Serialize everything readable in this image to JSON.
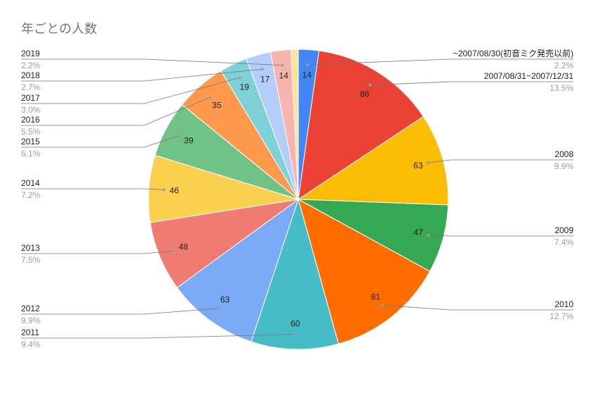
{
  "chart_data": {
    "type": "pie",
    "title": "年ごとの人数",
    "categories": [
      "~2007/08/30(初音ミク発売以前)",
      "2007/08/31~2007/12/31",
      "2008",
      "2009",
      "2010",
      "2011",
      "2012",
      "2013",
      "2014",
      "2015",
      "2016",
      "2017",
      "2018",
      "2019",
      null
    ],
    "values": [
      14,
      86,
      63,
      47,
      81,
      60,
      63,
      48,
      46,
      39,
      35,
      19,
      17,
      14,
      5
    ],
    "percent_labels": [
      "2.2%",
      "13.5%",
      "9.9%",
      "7.4%",
      "12.7%",
      "9.4%",
      "9.9%",
      "7.5%",
      "7.2%",
      "6.1%",
      "5.5%",
      "3.0%",
      "2.7%",
      "2.2%",
      null
    ],
    "colors": [
      "#4285f4",
      "#ea4335",
      "#fbbc04",
      "#34a853",
      "#ff6d01",
      "#46bdc6",
      "#7baaf7",
      "#f07b72",
      "#fcd04f",
      "#71c287",
      "#ff994d",
      "#7ed1d7",
      "#b3cefb",
      "#f7b4ae",
      "#fde49b"
    ]
  }
}
